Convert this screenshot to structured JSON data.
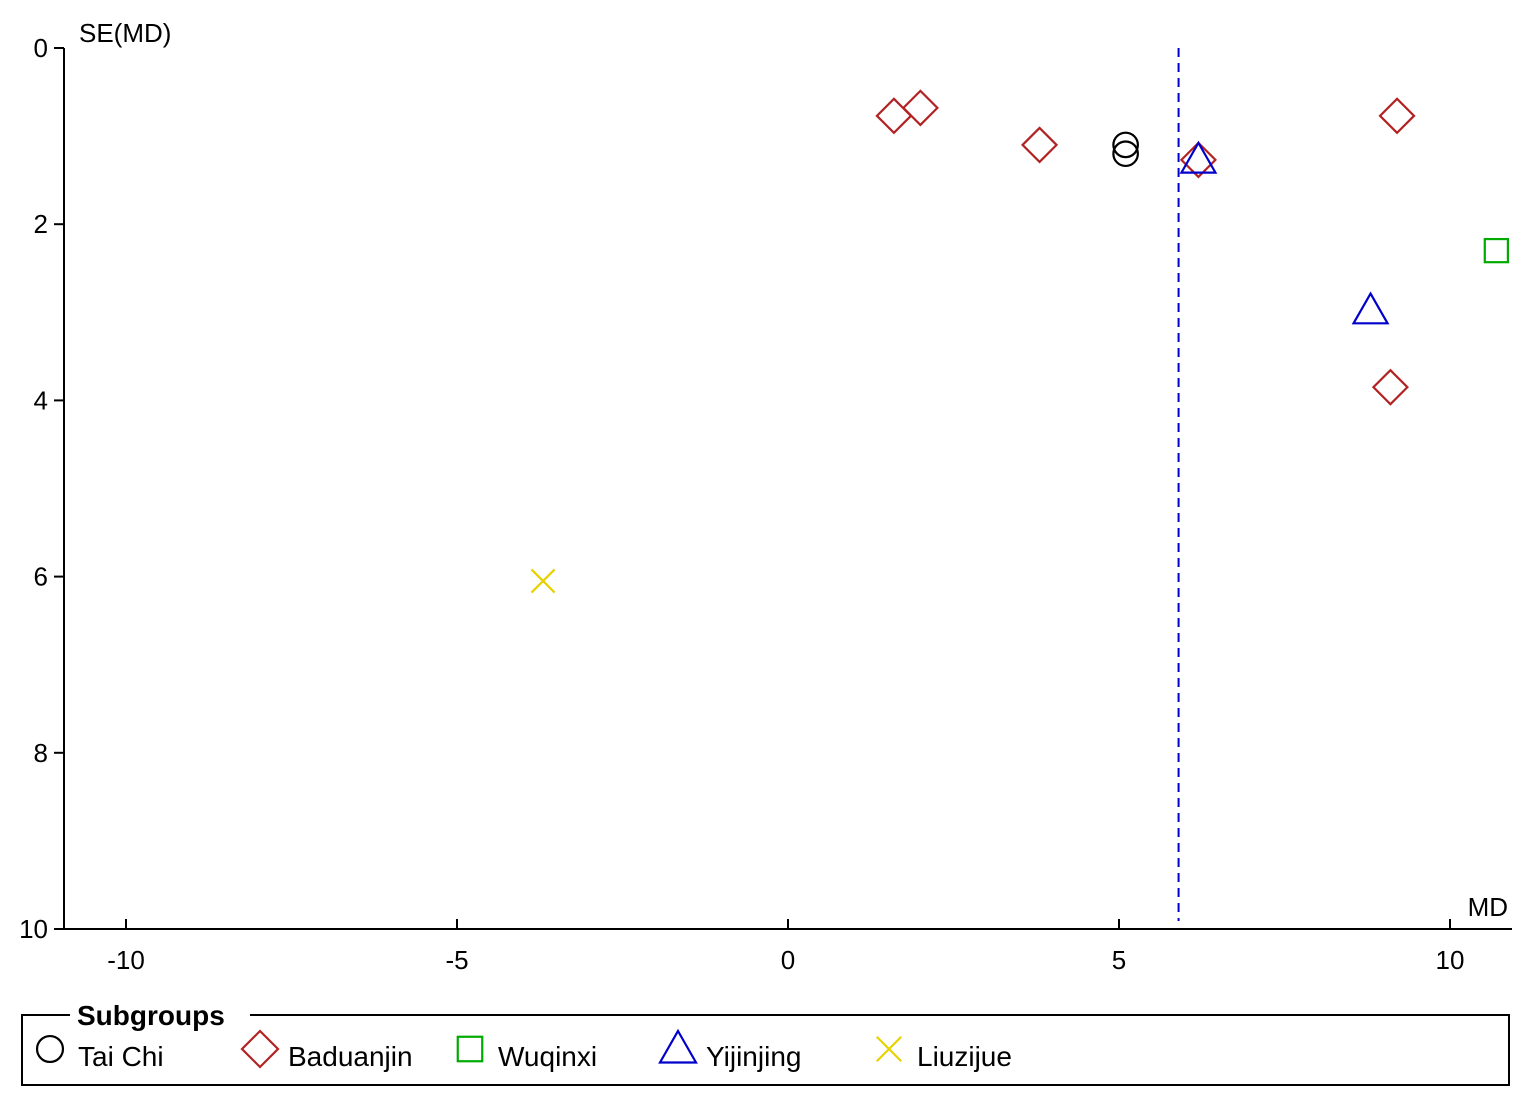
{
  "chart_data": {
    "type": "scatter",
    "title": "",
    "xlabel": "MD",
    "ylabel": "SE(MD)",
    "xlim": [
      -11,
      11
    ],
    "ylim": [
      0,
      10
    ],
    "y_inverted": true,
    "x_ticks": [
      -10,
      -5,
      0,
      5,
      10
    ],
    "x_tick_labels": [
      "-10",
      "-5",
      "0",
      "5",
      "10"
    ],
    "y_ticks": [
      0,
      2,
      4,
      6,
      8,
      10
    ],
    "y_tick_labels": [
      "0",
      "2",
      "4",
      "6",
      "8",
      "10"
    ],
    "pooled_estimate_line": {
      "x": 5.9,
      "style": "dashed",
      "color": "#0000cc"
    },
    "grid": false,
    "legend": {
      "title": "Subgroups",
      "placement": "bottom"
    },
    "series": [
      {
        "name": "Tai Chi",
        "marker": "circle",
        "color": "#000000",
        "points": [
          {
            "x": 5.1,
            "y": 1.1
          },
          {
            "x": 5.1,
            "y": 1.2
          }
        ]
      },
      {
        "name": "Baduanjin",
        "marker": "diamond",
        "color": "#b22222",
        "points": [
          {
            "x": 1.6,
            "y": 0.77
          },
          {
            "x": 2.0,
            "y": 0.68
          },
          {
            "x": 3.8,
            "y": 1.1
          },
          {
            "x": 9.2,
            "y": 0.77
          },
          {
            "x": 9.1,
            "y": 3.85
          },
          {
            "x": 6.2,
            "y": 1.27
          }
        ]
      },
      {
        "name": "Wuqinxi",
        "marker": "square",
        "color": "#00aa00",
        "points": [
          {
            "x": 10.7,
            "y": 2.3
          }
        ]
      },
      {
        "name": "Yijinjing",
        "marker": "triangle",
        "color": "#0000cc",
        "points": [
          {
            "x": 6.2,
            "y": 1.27
          },
          {
            "x": 8.8,
            "y": 2.98
          }
        ]
      },
      {
        "name": "Liuzijue",
        "marker": "x",
        "color": "#e6d200",
        "points": [
          {
            "x": -3.7,
            "y": 6.05
          }
        ]
      }
    ]
  }
}
